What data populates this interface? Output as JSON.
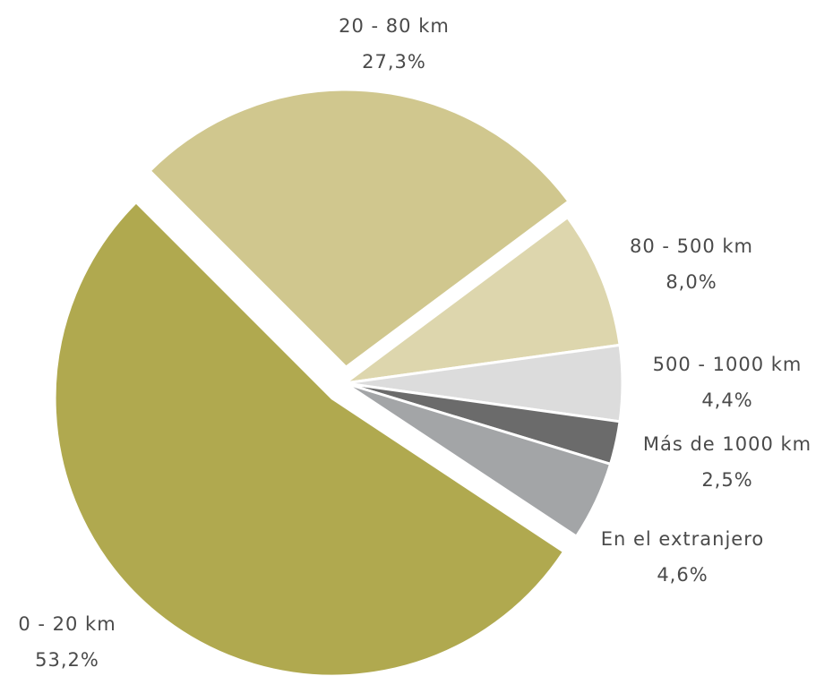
{
  "chart_data": {
    "type": "pie",
    "categories": [
      "0 - 20 km",
      "20 - 80 km",
      "80 - 500 km",
      "500 - 1000 km",
      "Más de 1000 km",
      "En el extranjero"
    ],
    "values": [
      53.2,
      27.3,
      8.0,
      4.4,
      2.5,
      4.6
    ],
    "value_labels": [
      "53,2%",
      "27,3%",
      "8,0%",
      "4,4%",
      "2,5%",
      "4,6%"
    ],
    "colors": [
      "#b0a94f",
      "#d0c78e",
      "#ddd6ad",
      "#dcdcdc",
      "#6b6b6b",
      "#a3a5a7"
    ]
  }
}
